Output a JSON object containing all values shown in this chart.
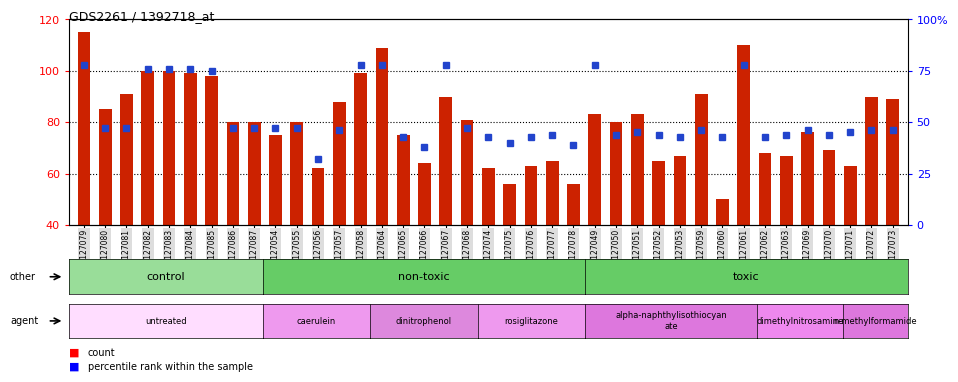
{
  "title": "GDS2261 / 1392718_at",
  "samples": [
    "GSM127079",
    "GSM127080",
    "GSM127081",
    "GSM127082",
    "GSM127083",
    "GSM127084",
    "GSM127085",
    "GSM127086",
    "GSM127087",
    "GSM127054",
    "GSM127055",
    "GSM127056",
    "GSM127057",
    "GSM127058",
    "GSM127064",
    "GSM127065",
    "GSM127066",
    "GSM127067",
    "GSM127068",
    "GSM127074",
    "GSM127075",
    "GSM127076",
    "GSM127077",
    "GSM127078",
    "GSM127049",
    "GSM127050",
    "GSM127051",
    "GSM127052",
    "GSM127053",
    "GSM127059",
    "GSM127060",
    "GSM127061",
    "GSM127062",
    "GSM127063",
    "GSM127069",
    "GSM127070",
    "GSM127071",
    "GSM127072",
    "GSM127073"
  ],
  "counts": [
    115,
    85,
    91,
    100,
    100,
    99,
    98,
    80,
    80,
    75,
    80,
    62,
    88,
    99,
    109,
    75,
    64,
    90,
    81,
    62,
    56,
    63,
    65,
    56,
    83,
    80,
    83,
    65,
    67,
    91,
    50,
    110,
    68,
    67,
    76,
    69,
    63,
    90,
    89
  ],
  "percentile_ranks": [
    78,
    47,
    47,
    76,
    76,
    76,
    75,
    47,
    47,
    47,
    47,
    32,
    46,
    78,
    78,
    43,
    38,
    78,
    47,
    43,
    40,
    43,
    44,
    39,
    78,
    44,
    45,
    44,
    43,
    46,
    43,
    78,
    43,
    44,
    46,
    44,
    45,
    46,
    46
  ],
  "ylim_left": [
    40,
    120
  ],
  "ylim_right": [
    0,
    100
  ],
  "yticks_left": [
    40,
    60,
    80,
    100,
    120
  ],
  "yticks_right": [
    0,
    25,
    50,
    75,
    100
  ],
  "bar_color": "#cc2200",
  "dot_color": "#2244cc",
  "other_groups": [
    {
      "label": "control",
      "start": 0,
      "end": 9,
      "color": "#99dd99"
    },
    {
      "label": "non-toxic",
      "start": 9,
      "end": 24,
      "color": "#66cc66"
    },
    {
      "label": "toxic",
      "start": 24,
      "end": 39,
      "color": "#66cc66"
    }
  ],
  "agent_groups": [
    {
      "label": "untreated",
      "start": 0,
      "end": 9,
      "color": "#ffddff"
    },
    {
      "label": "caerulein",
      "start": 9,
      "end": 14,
      "color": "#ee99ee"
    },
    {
      "label": "dinitrophenol",
      "start": 14,
      "end": 19,
      "color": "#dd88dd"
    },
    {
      "label": "rosiglitazone",
      "start": 19,
      "end": 24,
      "color": "#ee99ee"
    },
    {
      "label": "alpha-naphthylisothiocyan\nate",
      "start": 24,
      "end": 32,
      "color": "#dd77dd"
    },
    {
      "label": "dimethylnitrosamine",
      "start": 32,
      "end": 36,
      "color": "#ee88ee"
    },
    {
      "label": "n-methylformamide",
      "start": 36,
      "end": 39,
      "color": "#dd77dd"
    }
  ],
  "tick_bg_color": "#dddddd"
}
